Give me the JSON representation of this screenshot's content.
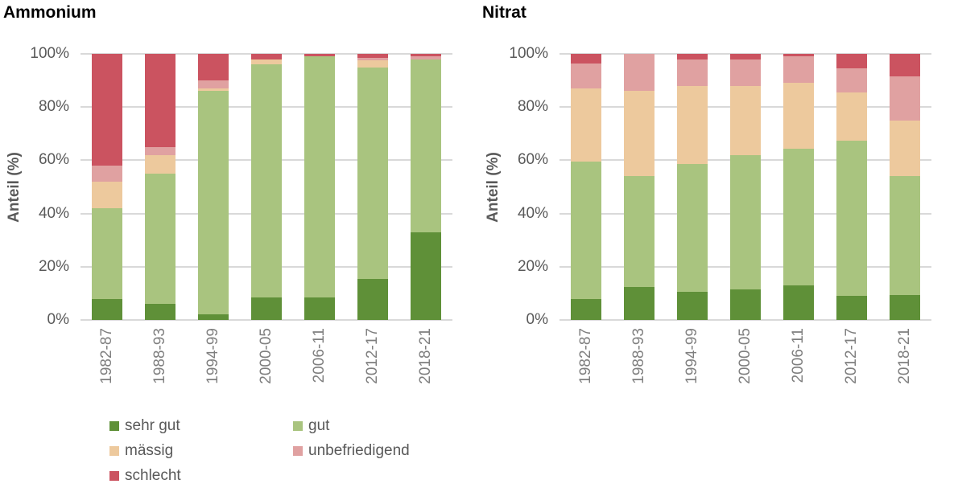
{
  "colors": {
    "sehr_gut": "#5f9038",
    "gut": "#a9c47f",
    "maessig": "#edc99d",
    "unbefriedigend": "#e0a1a1",
    "schlecht": "#cb5360",
    "gridline": "#d9d9d9",
    "ytick_text": "#595959",
    "xtick_text": "#7f7f7f"
  },
  "axis": {
    "ylabel": "Anteil (%)",
    "yticks": [
      {
        "label": "100%",
        "value": 100
      },
      {
        "label": "80%",
        "value": 80
      },
      {
        "label": "60%",
        "value": 60
      },
      {
        "label": "40%",
        "value": 40
      },
      {
        "label": "20%",
        "value": 20
      },
      {
        "label": "0%",
        "value": 0
      }
    ]
  },
  "legend": {
    "items": [
      {
        "label": "sehr gut",
        "color": "#5f9038"
      },
      {
        "label": "gut",
        "color": "#a9c47f"
      },
      {
        "label": "mässig",
        "color": "#edc99d"
      },
      {
        "label": "unbefriedigend",
        "color": "#e0a1a1"
      },
      {
        "label": "schlecht",
        "color": "#cb5360"
      }
    ]
  },
  "chart_data": [
    {
      "type": "bar",
      "stacked": true,
      "title": "Ammonium",
      "xlabel": "",
      "ylabel": "Anteil (%)",
      "ylim": [
        0,
        100
      ],
      "grid": true,
      "categories": [
        "1982-87",
        "1988-93",
        "1994-99",
        "2000-05",
        "2006-11",
        "2012-17",
        "2018-21"
      ],
      "series": [
        {
          "name": "sehr gut",
          "color": "#5f9038",
          "values": [
            8,
            6,
            2,
            8.5,
            8.5,
            15.5,
            33
          ]
        },
        {
          "name": "gut",
          "color": "#a9c47f",
          "values": [
            34,
            49,
            84,
            87.5,
            90.5,
            79.5,
            65
          ]
        },
        {
          "name": "mässig",
          "color": "#edc99d",
          "values": [
            10,
            7,
            1,
            2,
            0,
            2.5,
            0
          ]
        },
        {
          "name": "unbefriedigend",
          "color": "#e0a1a1",
          "values": [
            6,
            3,
            3,
            0,
            0,
            1,
            1
          ]
        },
        {
          "name": "schlecht",
          "color": "#cb5360",
          "values": [
            42,
            35,
            10,
            2,
            1,
            1.5,
            1
          ]
        }
      ]
    },
    {
      "type": "bar",
      "stacked": true,
      "title": "Nitrat",
      "xlabel": "",
      "ylabel": "Anteil (%)",
      "ylim": [
        0,
        100
      ],
      "grid": true,
      "categories": [
        "1982-87",
        "1988-93",
        "1994-99",
        "2000-05",
        "2006-11",
        "2012-17",
        "2018-21"
      ],
      "series": [
        {
          "name": "sehr gut",
          "color": "#5f9038",
          "values": [
            8,
            12.5,
            10.5,
            11.5,
            13,
            9,
            9.5
          ]
        },
        {
          "name": "gut",
          "color": "#a9c47f",
          "values": [
            51.5,
            41.5,
            48,
            50.5,
            51.5,
            58.5,
            44.5
          ]
        },
        {
          "name": "mässig",
          "color": "#edc99d",
          "values": [
            27.5,
            32,
            29.5,
            26,
            24.5,
            18,
            21
          ]
        },
        {
          "name": "unbefriedigend",
          "color": "#e0a1a1",
          "values": [
            9.5,
            14,
            10,
            10,
            10,
            9,
            16.5
          ]
        },
        {
          "name": "schlecht",
          "color": "#cb5360",
          "values": [
            3.5,
            0,
            2,
            2,
            1,
            5.5,
            8.5
          ]
        }
      ]
    }
  ]
}
